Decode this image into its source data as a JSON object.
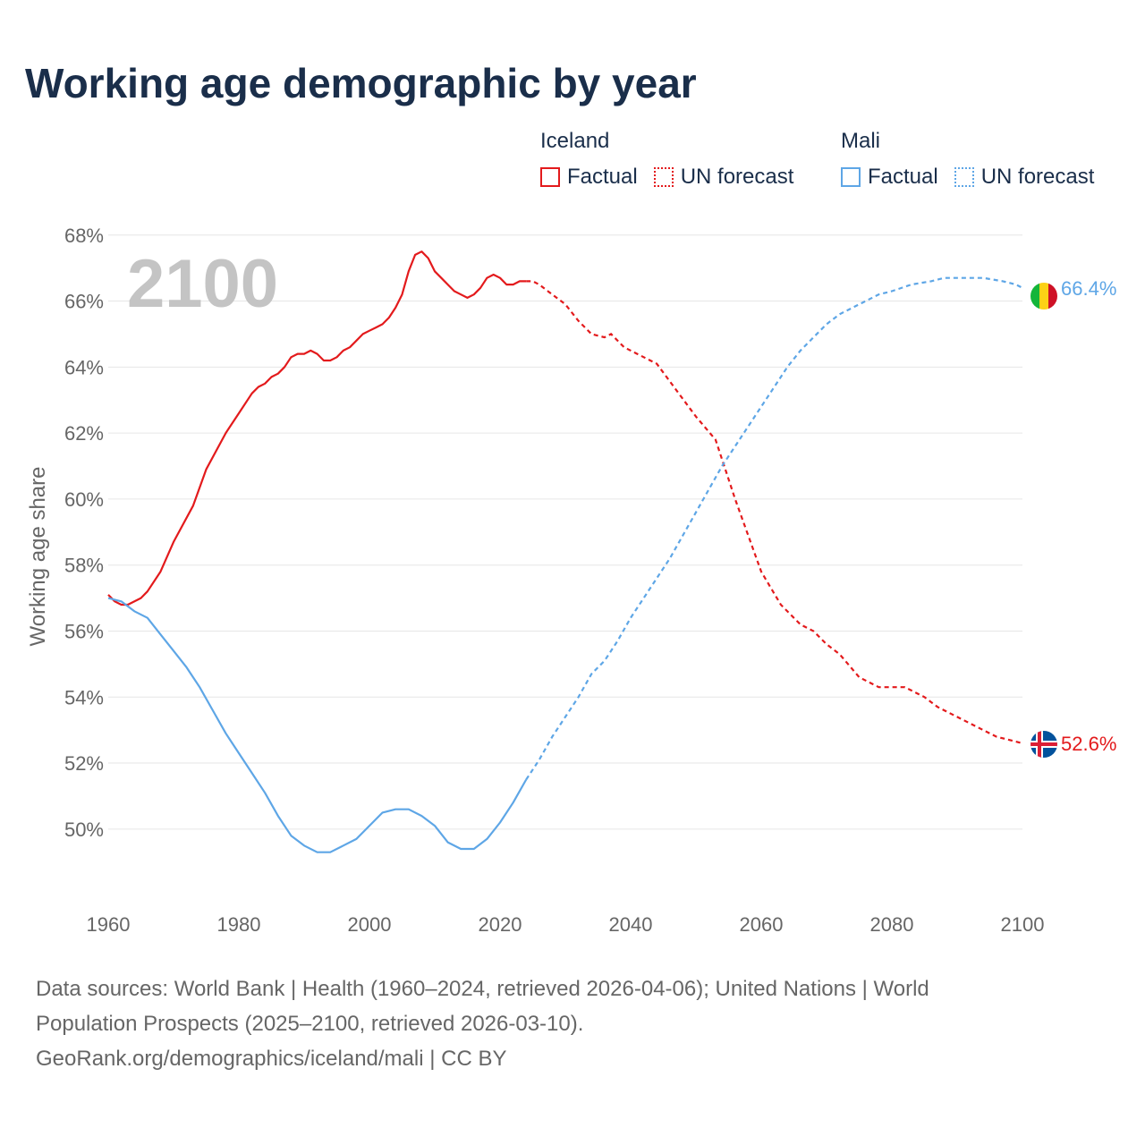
{
  "title": "Working age demographic by year",
  "legend": {
    "groups": [
      {
        "name": "Iceland",
        "factual": "Factual",
        "forecast": "UN forecast",
        "color": "#e31a1c"
      },
      {
        "name": "Mali",
        "factual": "Factual",
        "forecast": "UN forecast",
        "color": "#5ea6e6"
      }
    ]
  },
  "footer": {
    "line1": "Data sources: World Bank | Health (1960–2024, retrieved 2026-04-06); United Nations | World",
    "line2": "Population Prospects (2025–2100, retrieved 2026-03-10).",
    "line3": "GeoRank.org/demographics/iceland/mali | CC BY"
  },
  "chart_data": {
    "type": "line",
    "title": "Working age demographic by year",
    "year_label": "2100",
    "xlabel": "",
    "ylabel": "Working age share",
    "xlim": [
      1960,
      2100
    ],
    "ylim": [
      47.8,
      68.4
    ],
    "x_ticks": [
      1960,
      1980,
      2000,
      2020,
      2040,
      2060,
      2080,
      2100
    ],
    "y_ticks": [
      50,
      52,
      54,
      56,
      58,
      60,
      62,
      64,
      66,
      68
    ],
    "y_tick_labels": [
      "50%",
      "52%",
      "54%",
      "56%",
      "58%",
      "60%",
      "62%",
      "64%",
      "66%",
      "68%"
    ],
    "forecast_start_year": 2024,
    "series": [
      {
        "name": "Iceland",
        "color": "#e31a1c",
        "end_label": "52.6%",
        "points": [
          [
            1960,
            57.1
          ],
          [
            1961,
            56.9
          ],
          [
            1962,
            56.8
          ],
          [
            1963,
            56.8
          ],
          [
            1965,
            57.0
          ],
          [
            1966,
            57.2
          ],
          [
            1968,
            57.8
          ],
          [
            1970,
            58.7
          ],
          [
            1973,
            59.8
          ],
          [
            1975,
            60.9
          ],
          [
            1978,
            62.0
          ],
          [
            1980,
            62.6
          ],
          [
            1982,
            63.2
          ],
          [
            1983,
            63.4
          ],
          [
            1984,
            63.5
          ],
          [
            1985,
            63.7
          ],
          [
            1986,
            63.8
          ],
          [
            1987,
            64.0
          ],
          [
            1988,
            64.3
          ],
          [
            1989,
            64.4
          ],
          [
            1990,
            64.4
          ],
          [
            1991,
            64.5
          ],
          [
            1992,
            64.4
          ],
          [
            1993,
            64.2
          ],
          [
            1994,
            64.2
          ],
          [
            1995,
            64.3
          ],
          [
            1996,
            64.5
          ],
          [
            1997,
            64.6
          ],
          [
            1998,
            64.8
          ],
          [
            1999,
            65.0
          ],
          [
            2000,
            65.1
          ],
          [
            2001,
            65.2
          ],
          [
            2002,
            65.3
          ],
          [
            2003,
            65.5
          ],
          [
            2004,
            65.8
          ],
          [
            2005,
            66.2
          ],
          [
            2006,
            66.9
          ],
          [
            2007,
            67.4
          ],
          [
            2008,
            67.5
          ],
          [
            2009,
            67.3
          ],
          [
            2010,
            66.9
          ],
          [
            2011,
            66.7
          ],
          [
            2012,
            66.5
          ],
          [
            2013,
            66.3
          ],
          [
            2014,
            66.2
          ],
          [
            2015,
            66.1
          ],
          [
            2016,
            66.2
          ],
          [
            2017,
            66.4
          ],
          [
            2018,
            66.7
          ],
          [
            2019,
            66.8
          ],
          [
            2020,
            66.7
          ],
          [
            2021,
            66.5
          ],
          [
            2022,
            66.5
          ],
          [
            2023,
            66.6
          ],
          [
            2024,
            66.6
          ],
          [
            2025,
            66.6
          ],
          [
            2026,
            66.5
          ],
          [
            2028,
            66.2
          ],
          [
            2030,
            65.9
          ],
          [
            2032,
            65.4
          ],
          [
            2034,
            65.0
          ],
          [
            2036,
            64.9
          ],
          [
            2037,
            65.0
          ],
          [
            2039,
            64.6
          ],
          [
            2041,
            64.4
          ],
          [
            2044,
            64.1
          ],
          [
            2047,
            63.3
          ],
          [
            2050,
            62.5
          ],
          [
            2053,
            61.8
          ],
          [
            2056,
            60.0
          ],
          [
            2060,
            57.8
          ],
          [
            2063,
            56.8
          ],
          [
            2066,
            56.2
          ],
          [
            2068,
            56.0
          ],
          [
            2070,
            55.6
          ],
          [
            2072,
            55.3
          ],
          [
            2075,
            54.6
          ],
          [
            2078,
            54.3
          ],
          [
            2082,
            54.3
          ],
          [
            2085,
            54.0
          ],
          [
            2087,
            53.7
          ],
          [
            2090,
            53.4
          ],
          [
            2093,
            53.1
          ],
          [
            2096,
            52.8
          ],
          [
            2098,
            52.7
          ],
          [
            2100,
            52.6
          ]
        ]
      },
      {
        "name": "Mali",
        "color": "#5ea6e6",
        "end_label": "66.4%",
        "points": [
          [
            1960,
            57.0
          ],
          [
            1962,
            56.9
          ],
          [
            1964,
            56.6
          ],
          [
            1966,
            56.4
          ],
          [
            1968,
            55.9
          ],
          [
            1970,
            55.4
          ],
          [
            1972,
            54.9
          ],
          [
            1974,
            54.3
          ],
          [
            1976,
            53.6
          ],
          [
            1978,
            52.9
          ],
          [
            1980,
            52.3
          ],
          [
            1982,
            51.7
          ],
          [
            1984,
            51.1
          ],
          [
            1986,
            50.4
          ],
          [
            1988,
            49.8
          ],
          [
            1990,
            49.5
          ],
          [
            1992,
            49.3
          ],
          [
            1994,
            49.3
          ],
          [
            1996,
            49.5
          ],
          [
            1998,
            49.7
          ],
          [
            2000,
            50.1
          ],
          [
            2002,
            50.5
          ],
          [
            2004,
            50.6
          ],
          [
            2006,
            50.6
          ],
          [
            2008,
            50.4
          ],
          [
            2010,
            50.1
          ],
          [
            2012,
            49.6
          ],
          [
            2014,
            49.4
          ],
          [
            2016,
            49.4
          ],
          [
            2018,
            49.7
          ],
          [
            2020,
            50.2
          ],
          [
            2022,
            50.8
          ],
          [
            2024,
            51.5
          ],
          [
            2026,
            52.1
          ],
          [
            2028,
            52.8
          ],
          [
            2030,
            53.4
          ],
          [
            2032,
            54.0
          ],
          [
            2034,
            54.7
          ],
          [
            2036,
            55.1
          ],
          [
            2038,
            55.7
          ],
          [
            2040,
            56.4
          ],
          [
            2042,
            57.0
          ],
          [
            2044,
            57.6
          ],
          [
            2046,
            58.2
          ],
          [
            2048,
            58.9
          ],
          [
            2050,
            59.6
          ],
          [
            2052,
            60.3
          ],
          [
            2054,
            61.0
          ],
          [
            2056,
            61.6
          ],
          [
            2058,
            62.2
          ],
          [
            2060,
            62.8
          ],
          [
            2062,
            63.4
          ],
          [
            2064,
            64.0
          ],
          [
            2066,
            64.5
          ],
          [
            2068,
            64.9
          ],
          [
            2070,
            65.3
          ],
          [
            2072,
            65.6
          ],
          [
            2075,
            65.9
          ],
          [
            2078,
            66.2
          ],
          [
            2080,
            66.3
          ],
          [
            2083,
            66.5
          ],
          [
            2086,
            66.6
          ],
          [
            2088,
            66.7
          ],
          [
            2091,
            66.7
          ],
          [
            2094,
            66.7
          ],
          [
            2097,
            66.6
          ],
          [
            2099,
            66.5
          ],
          [
            2100,
            66.4
          ]
        ]
      }
    ]
  }
}
